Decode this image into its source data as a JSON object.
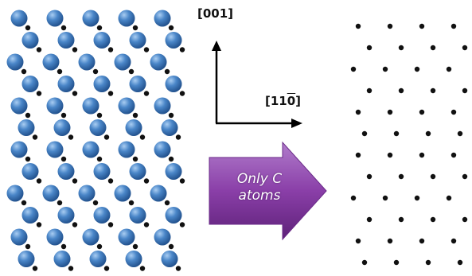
{
  "axes": {
    "vertical": "[001]",
    "horizontal_prefix": "[11",
    "horizontal_bar": "0",
    "horizontal_suffix": "]"
  },
  "transform_arrow": {
    "line1": "Only C",
    "line2": "atoms"
  },
  "colors": {
    "large_atom": "#4a86c8",
    "small_atom": "#111111",
    "arrow_fill": "#8a3fa8",
    "axis_line": "#000000"
  },
  "lattice": {
    "columns": 5,
    "rows": 12,
    "shown_in": "left panel: large blue atoms with small black C atoms; right panel: only small black C atoms"
  }
}
